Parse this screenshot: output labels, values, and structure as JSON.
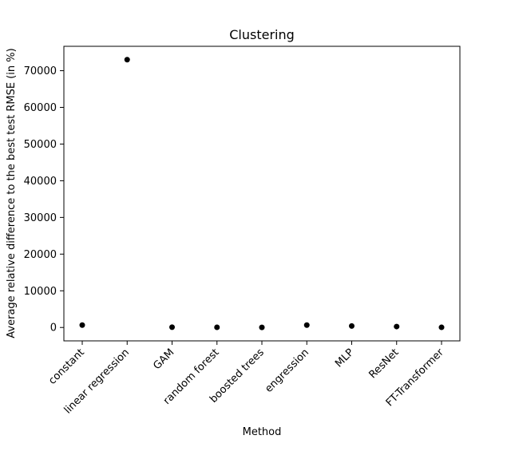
{
  "chart_data": {
    "type": "scatter",
    "title": "Clustering",
    "xlabel": "Method",
    "ylabel": "Average relative difference to the best test RMSE (in %)",
    "categories": [
      "constant",
      "linear regression",
      "GAM",
      "random forest",
      "boosted trees",
      "engression",
      "MLP",
      "ResNet",
      "FT-Transformer"
    ],
    "values": [
      650,
      73000,
      80,
      50,
      20,
      650,
      400,
      250,
      40
    ],
    "yticks": [
      0,
      10000,
      20000,
      30000,
      40000,
      50000,
      60000,
      70000
    ],
    "ylim": [
      -3650,
      76650
    ],
    "grid": false,
    "marker_color": "#000000"
  }
}
